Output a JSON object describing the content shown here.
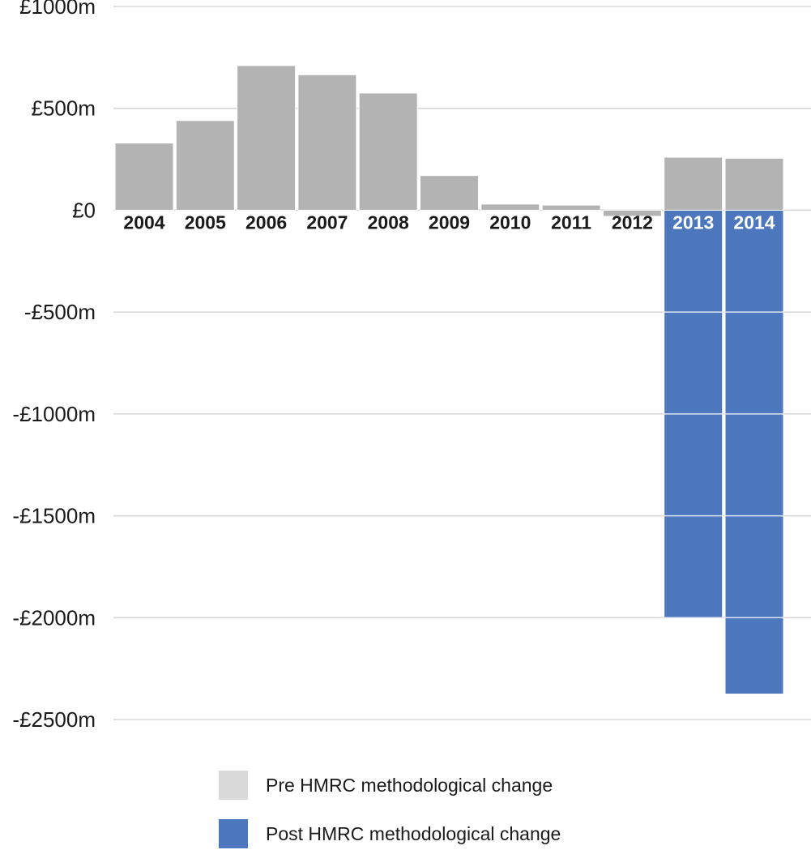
{
  "chart_data": {
    "type": "bar",
    "categories": [
      "2004",
      "2005",
      "2006",
      "2007",
      "2008",
      "2009",
      "2010",
      "2011",
      "2012",
      "2013",
      "2014"
    ],
    "series": [
      {
        "name": "Pre HMRC methodological change",
        "values": [
          330,
          440,
          710,
          665,
          575,
          170,
          30,
          25,
          -30,
          260,
          255
        ],
        "color": "#b3b3b3"
      },
      {
        "name": "Post HMRC methodological change",
        "values": [
          null,
          null,
          null,
          null,
          null,
          null,
          null,
          null,
          null,
          -2000,
          -2375
        ],
        "color": "#4c77bd"
      }
    ],
    "yticks": [
      1000,
      500,
      0,
      -500,
      -1000,
      -1500,
      -2000,
      -2500
    ],
    "ytick_labels": [
      "£1000m",
      "£500m",
      "£0",
      "-£500m",
      "-£1000m",
      "-£1500m",
      "-£2000m",
      "-£2500m"
    ],
    "ylim": [
      -2500,
      1000
    ],
    "grid": true,
    "legend_position": "bottom",
    "colors": {
      "pre": "#b3b3b3",
      "post": "#4c77bd",
      "pre_swatch": "#d9d9d9",
      "grid": "#d6d6d6"
    }
  },
  "legend": {
    "items": [
      {
        "label": "Pre HMRC methodological change",
        "color": "#d9d9d9"
      },
      {
        "label": "Post HMRC methodological change",
        "color": "#4c77bd"
      }
    ]
  }
}
